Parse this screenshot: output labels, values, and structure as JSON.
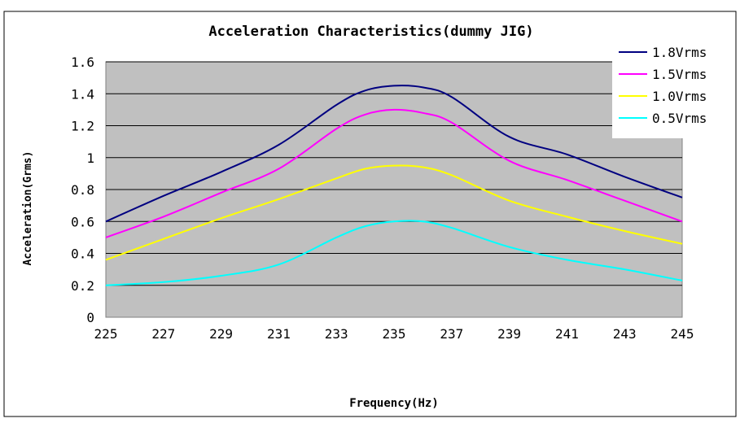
{
  "chart_data": {
    "type": "line",
    "title": "Acceleration Characteristics(dummy JIG)",
    "xlabel": "Frequency(Hz)",
    "ylabel": "Acceleration(Grms)",
    "xlim": [
      225,
      245
    ],
    "ylim": [
      0,
      1.6
    ],
    "x_ticks": [
      "225",
      "227",
      "229",
      "231",
      "233",
      "235",
      "237",
      "239",
      "241",
      "243",
      "245"
    ],
    "y_ticks": [
      "0",
      "0.2",
      "0.4",
      "0.6",
      "0.8",
      "1",
      "1.2",
      "1.4",
      "1.6"
    ],
    "grid": true,
    "legend_position": "top-right",
    "plot_background": "#c0c0c0",
    "series": [
      {
        "name": "1.8Vrms",
        "color": "#000080",
        "x": [
          225,
          227,
          229,
          231,
          233,
          234,
          235,
          236,
          237,
          239,
          241,
          243,
          245
        ],
        "y": [
          0.6,
          0.76,
          0.91,
          1.08,
          1.33,
          1.42,
          1.45,
          1.44,
          1.38,
          1.13,
          1.02,
          0.88,
          0.75
        ]
      },
      {
        "name": "1.5Vrms",
        "color": "#ff00ff",
        "x": [
          225,
          227,
          229,
          231,
          233,
          234,
          235,
          236,
          237,
          239,
          241,
          243,
          245
        ],
        "y": [
          0.5,
          0.63,
          0.78,
          0.93,
          1.18,
          1.27,
          1.3,
          1.28,
          1.22,
          0.98,
          0.86,
          0.73,
          0.6
        ]
      },
      {
        "name": "1.0Vrms",
        "color": "#ffff00",
        "x": [
          225,
          227,
          229,
          231,
          233,
          234,
          235,
          236,
          237,
          239,
          241,
          243,
          245
        ],
        "y": [
          0.36,
          0.49,
          0.62,
          0.74,
          0.87,
          0.93,
          0.95,
          0.94,
          0.89,
          0.73,
          0.63,
          0.54,
          0.46
        ]
      },
      {
        "name": "0.5Vrms",
        "color": "#00ffff",
        "x": [
          225,
          227,
          229,
          231,
          233,
          234,
          235,
          236,
          237,
          239,
          241,
          243,
          245
        ],
        "y": [
          0.2,
          0.22,
          0.26,
          0.33,
          0.5,
          0.57,
          0.6,
          0.6,
          0.56,
          0.44,
          0.36,
          0.3,
          0.23
        ]
      }
    ]
  }
}
